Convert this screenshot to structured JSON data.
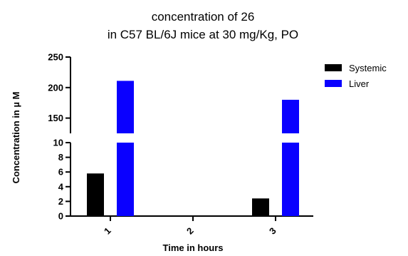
{
  "chart_data": {
    "type": "bar",
    "title_line1": "concentration of 26",
    "title_line2": "in C57 BL/6J mice at 30 mg/Kg, PO",
    "xlabel": "Time in hours",
    "ylabel": "Concentration in µ M",
    "categories": [
      "1",
      "2",
      "3"
    ],
    "series": [
      {
        "name": "Systemic",
        "color": "#000000",
        "values": [
          5.8,
          0,
          2.4
        ]
      },
      {
        "name": "Liver",
        "color": "#0a00ff",
        "values": [
          211,
          0,
          180
        ]
      }
    ],
    "y_axis_break": {
      "lower_range": [
        0,
        10
      ],
      "lower_ticks": [
        "0",
        "2",
        "4",
        "6",
        "8",
        "10"
      ],
      "upper_range": [
        125,
        250
      ],
      "upper_ticks": [
        "150",
        "200",
        "250"
      ]
    },
    "legend_position": "top-right",
    "grid": false
  }
}
